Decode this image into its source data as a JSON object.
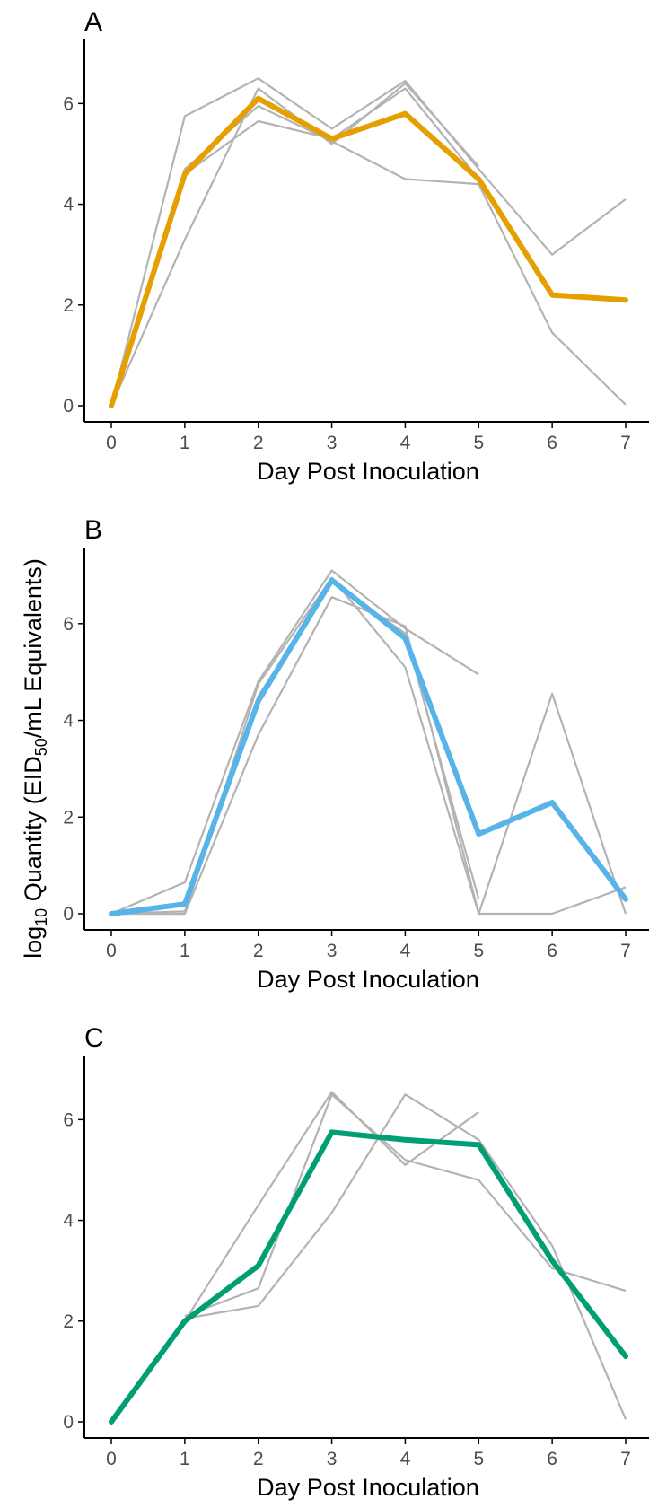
{
  "y_axis_title": {
    "prefix": "log",
    "prefix_sub": "10",
    "mid": " Quantity (EID",
    "mid_sub": "50",
    "suffix": "/mL Equivalents)"
  },
  "colors": {
    "individual": "#b3b3b3",
    "axis": "#000000",
    "tick_text": "#4d4d4d"
  },
  "chart_data": [
    {
      "type": "line",
      "panel": "A",
      "xlabel": "Day Post Inoculation",
      "ylabel": "",
      "x": [
        0,
        1,
        2,
        3,
        4,
        5,
        6,
        7
      ],
      "xlim": [
        0,
        7
      ],
      "ylim": [
        0,
        7.2
      ],
      "yticks": [
        0,
        2,
        4,
        6
      ],
      "grid": false,
      "mean_color": "#E69F00",
      "mean": [
        0,
        4.6,
        6.1,
        5.3,
        5.8,
        4.5,
        2.2,
        2.1
      ],
      "individuals": [
        [
          0,
          5.75,
          6.5,
          5.5,
          6.45,
          4.7,
          3.0,
          4.1
        ],
        [
          0,
          4.7,
          5.95,
          5.25,
          4.5,
          4.4,
          1.45,
          0.02
        ],
        [
          0,
          3.3,
          6.3,
          5.2,
          6.4,
          4.75
        ],
        [
          0,
          4.6,
          5.65,
          5.3,
          6.3,
          4.5
        ]
      ]
    },
    {
      "type": "line",
      "panel": "B",
      "xlabel": "Day Post Inoculation",
      "ylabel": "",
      "x": [
        0,
        1,
        2,
        3,
        4,
        5,
        6,
        7
      ],
      "xlim": [
        0,
        7
      ],
      "ylim": [
        0,
        7.5
      ],
      "yticks": [
        0,
        2,
        4,
        6
      ],
      "grid": false,
      "mean_color": "#56B4E9",
      "mean": [
        0,
        0.2,
        4.4,
        6.9,
        5.7,
        1.65,
        2.3,
        0.3
      ],
      "individuals": [
        [
          0,
          0.65,
          4.8,
          7.1,
          5.9,
          4.95
        ],
        [
          0,
          0,
          3.7,
          6.55,
          5.95,
          0,
          0,
          0.55
        ],
        [
          0,
          0,
          4.75,
          6.95,
          5.1,
          0,
          4.55,
          0
        ],
        [
          0,
          0.05,
          4.5,
          6.85,
          5.8,
          0.3
        ]
      ]
    },
    {
      "type": "line",
      "panel": "C",
      "xlabel": "Day Post Inoculation",
      "ylabel": "",
      "x": [
        0,
        1,
        2,
        3,
        4,
        5,
        6,
        7
      ],
      "xlim": [
        0,
        7
      ],
      "ylim": [
        0,
        7.2
      ],
      "yticks": [
        0,
        2,
        4,
        6
      ],
      "grid": false,
      "mean_color": "#009E73",
      "mean": [
        0,
        2.0,
        3.1,
        5.75,
        5.6,
        5.5,
        3.2,
        1.3
      ],
      "individuals": [
        [
          null,
          2.05,
          2.3,
          4.15,
          6.5,
          5.6,
          3.5,
          0.05
        ],
        [
          null,
          2.1,
          2.65,
          6.5,
          5.2,
          4.8,
          3.05,
          2.6
        ],
        [
          null,
          2.0,
          4.3,
          6.55,
          5.1,
          6.15
        ]
      ]
    }
  ]
}
